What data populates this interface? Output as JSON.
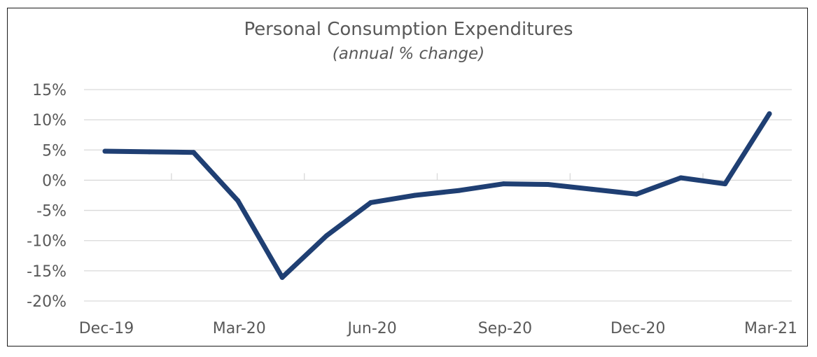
{
  "chart_data": {
    "type": "line",
    "title": "Personal Consumption Expenditures",
    "subtitle": "(annual % change)",
    "xlabel": "",
    "ylabel": "",
    "x": [
      "Dec-19",
      "Jan-20",
      "Feb-20",
      "Mar-20",
      "Apr-20",
      "May-20",
      "Jun-20",
      "Jul-20",
      "Aug-20",
      "Sep-20",
      "Oct-20",
      "Nov-20",
      "Dec-20",
      "Jan-21",
      "Feb-21",
      "Mar-21"
    ],
    "x_tick_labels": [
      "Dec-19",
      "Mar-20",
      "Jun-20",
      "Sep-20",
      "Dec-20",
      "Mar-21"
    ],
    "series": [
      {
        "values": [
          4.8,
          4.7,
          4.6,
          -3.4,
          -16.1,
          -9.2,
          -3.7,
          -2.5,
          -1.7,
          -0.6,
          -0.7,
          -1.5,
          -2.3,
          0.4,
          -0.6,
          11.0
        ]
      }
    ],
    "ylim": [
      -20,
      15
    ],
    "y_ticks": [
      15,
      10,
      5,
      0,
      -5,
      -10,
      -15,
      -20
    ],
    "y_tick_format": "percent",
    "grid": true,
    "legend": "none",
    "colors": {
      "line": "#1f3f73",
      "grid": "#d9d9d9",
      "text": "#595959"
    }
  }
}
